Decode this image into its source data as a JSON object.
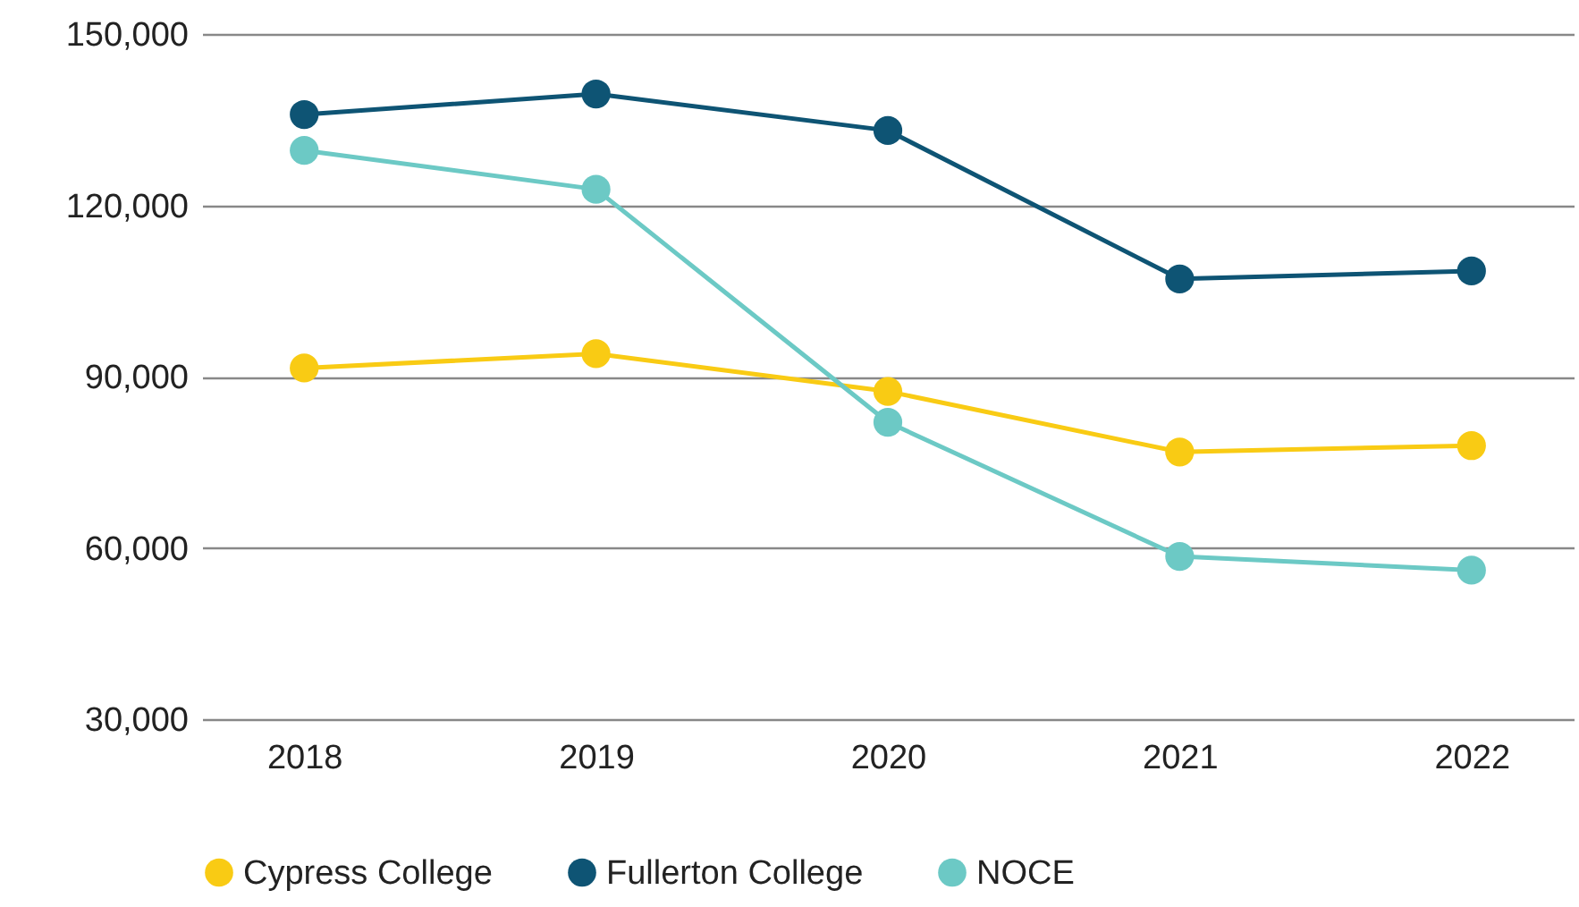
{
  "chart_data": {
    "type": "line",
    "categories": [
      "2018",
      "2019",
      "2020",
      "2021",
      "2022"
    ],
    "series": [
      {
        "name": "Cypress College",
        "color": "#f9cb14",
        "values": [
          91500,
          94000,
          87400,
          76800,
          77900
        ]
      },
      {
        "name": "Fullerton College",
        "color": "#0e5474",
        "values": [
          135900,
          139500,
          133100,
          107100,
          108500
        ]
      },
      {
        "name": "NOCE",
        "color": "#6cc9c5",
        "values": [
          129600,
          122800,
          82000,
          58500,
          56100
        ]
      }
    ],
    "ylim": [
      30000,
      150000
    ],
    "yticks": [
      {
        "value": 30000,
        "label": "30,000"
      },
      {
        "value": 60000,
        "label": "60,000"
      },
      {
        "value": 90000,
        "label": "90,000"
      },
      {
        "value": 120000,
        "label": "120,000"
      },
      {
        "value": 150000,
        "label": "150,000"
      }
    ],
    "grid": "y",
    "legend": "bottom",
    "marker": "circle",
    "line_style": "solid"
  }
}
